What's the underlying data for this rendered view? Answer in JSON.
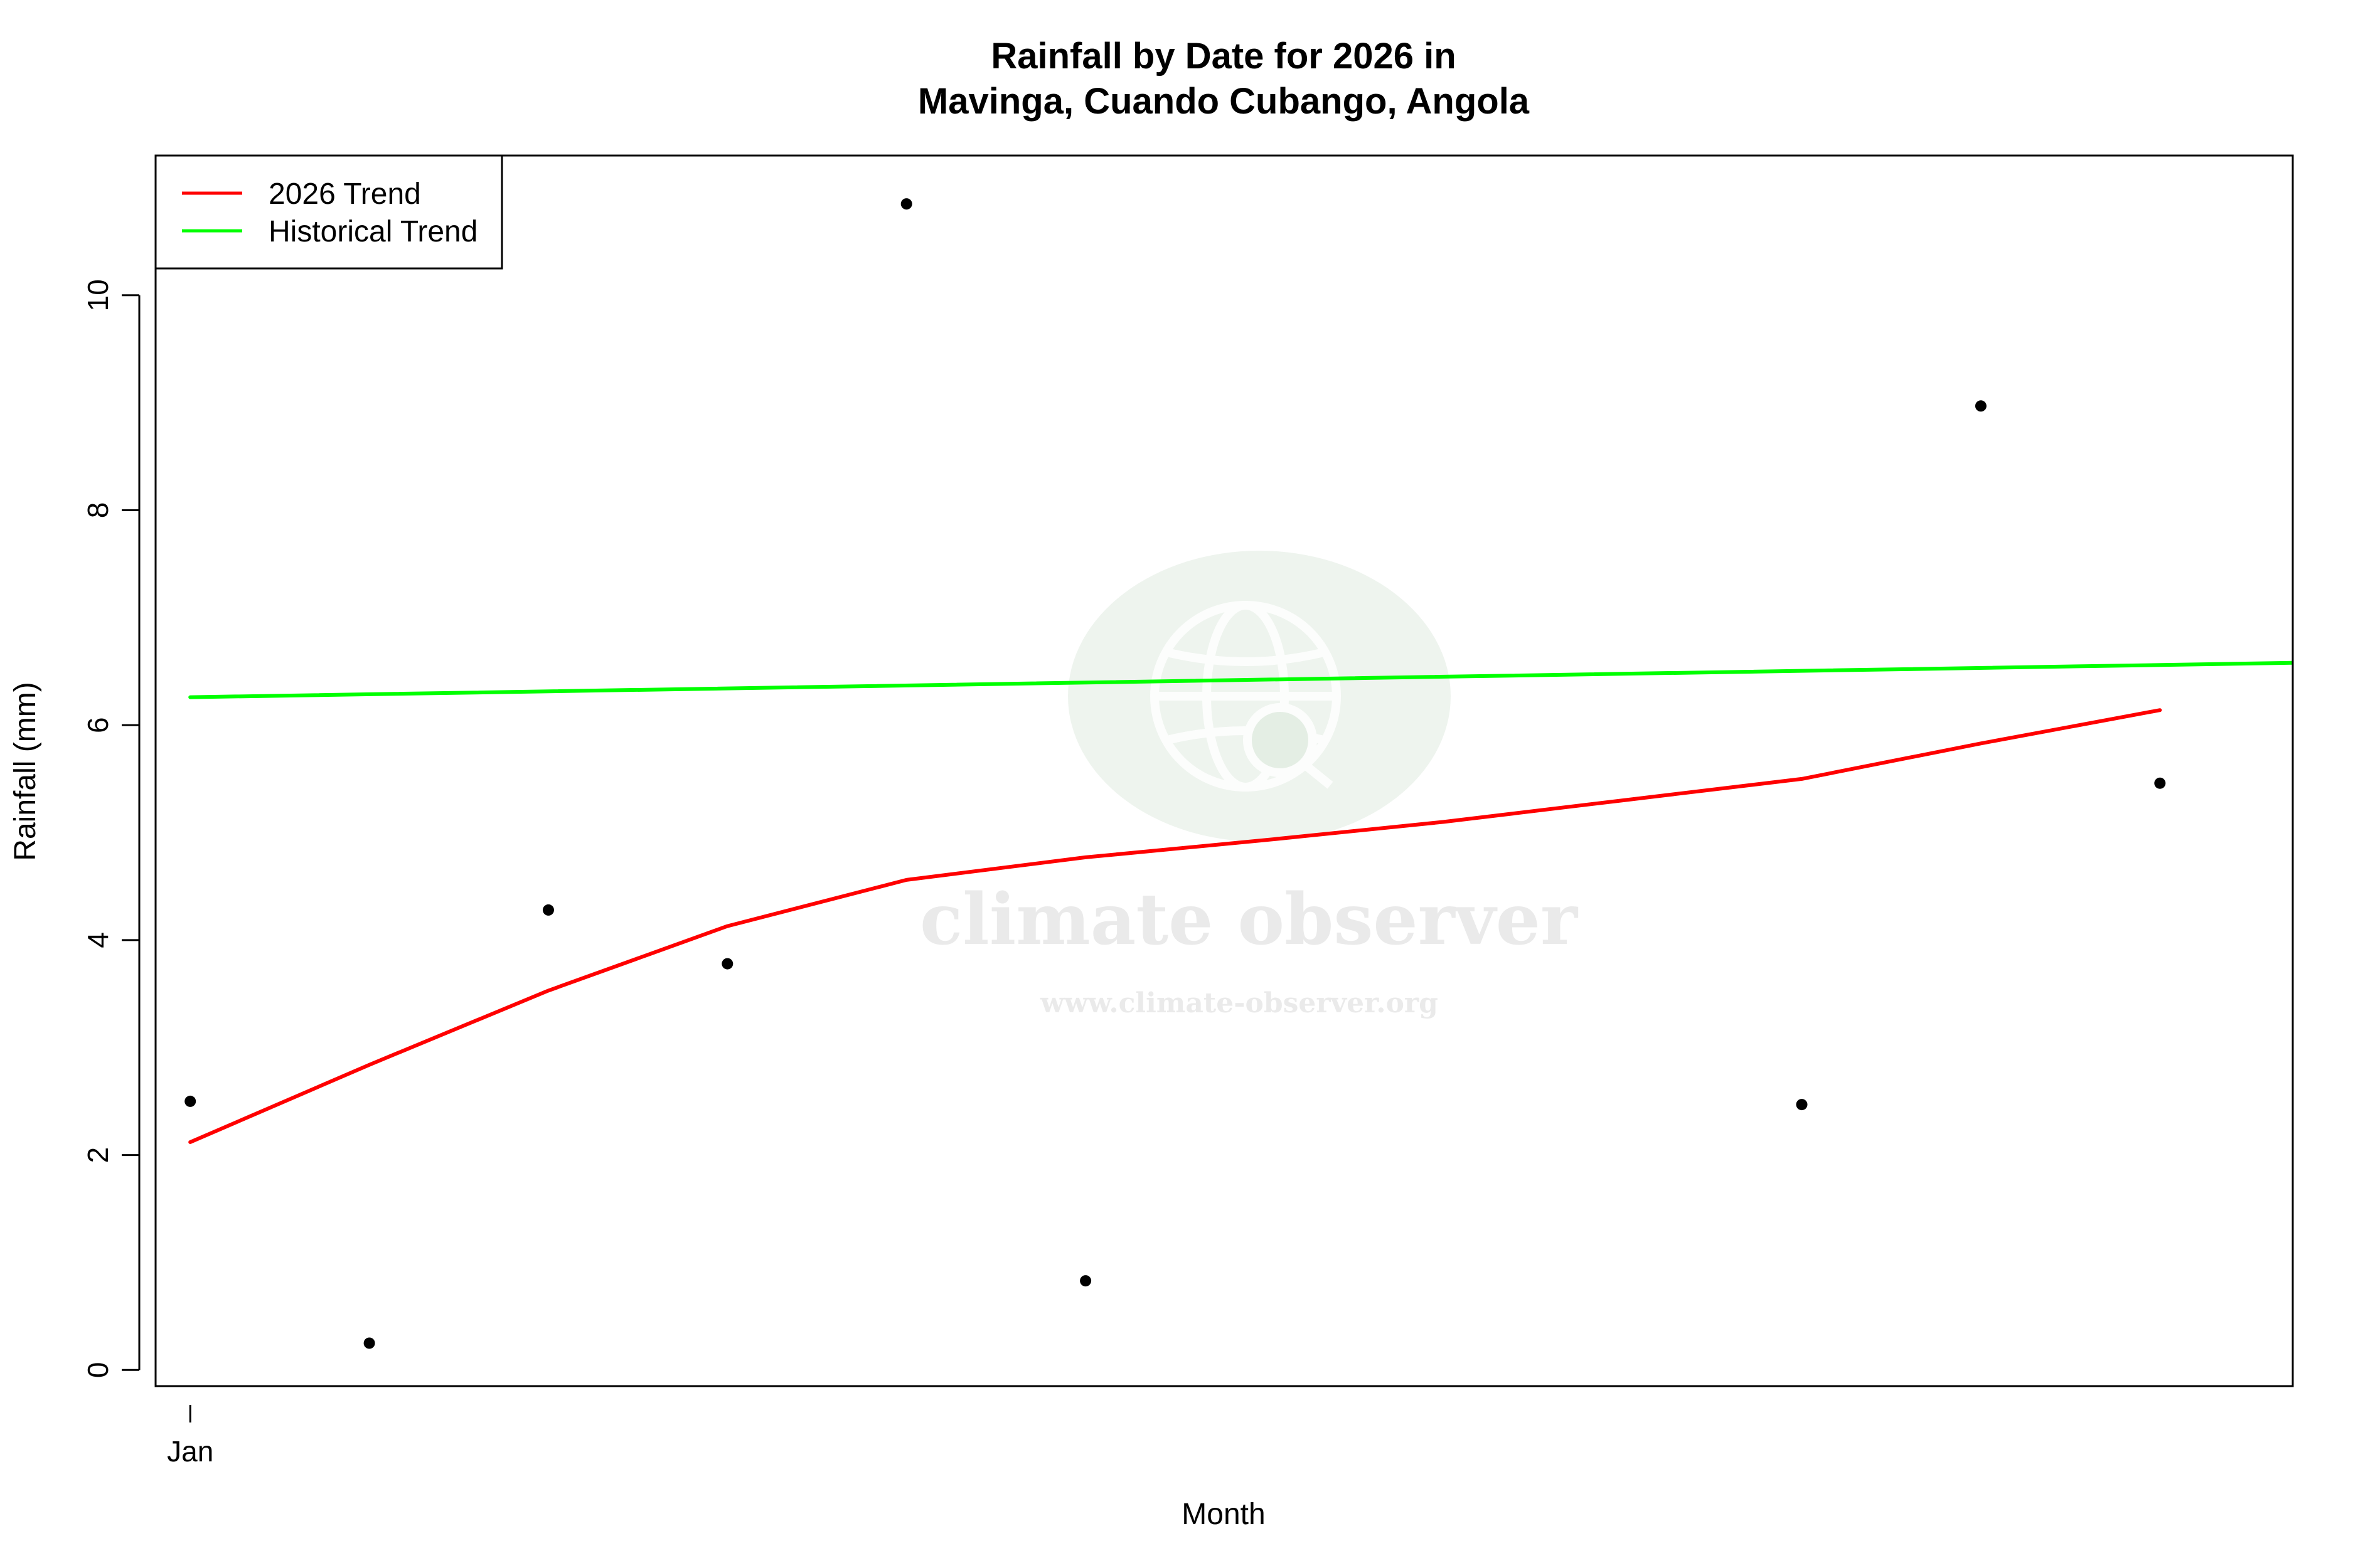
{
  "chart_data": {
    "type": "scatter",
    "title_lines": [
      "Rainfall by Date for 2026 in",
      "Mavinga, Cuando Cubango, Angola"
    ],
    "xlabel": "Month",
    "ylabel": "Rainfall (mm)",
    "x_unit": "day of year",
    "xlim": [
      -5,
      365
    ],
    "ylim": [
      -0.15,
      11.3
    ],
    "x_ticks": [
      {
        "value": 1,
        "label": "Jan"
      }
    ],
    "y_ticks": [
      {
        "value": 0,
        "label": "0"
      },
      {
        "value": 2,
        "label": "2"
      },
      {
        "value": 4,
        "label": "4"
      },
      {
        "value": 6,
        "label": "6"
      },
      {
        "value": 8,
        "label": "8"
      },
      {
        "value": 10,
        "label": "10"
      }
    ],
    "points": [
      {
        "x": 1,
        "y": 2.5
      },
      {
        "x": 32,
        "y": 0.25
      },
      {
        "x": 63,
        "y": 4.28
      },
      {
        "x": 94,
        "y": 3.78
      },
      {
        "x": 125,
        "y": 10.85
      },
      {
        "x": 156,
        "y": 0.83
      },
      {
        "x": 280,
        "y": 2.47
      },
      {
        "x": 311,
        "y": 8.97
      },
      {
        "x": 342,
        "y": 5.46
      }
    ],
    "series": [
      {
        "name": "2026 Trend",
        "color": "#ff0000",
        "x": [
          1,
          32,
          63,
          94,
          125,
          156,
          187,
          218,
          249,
          280,
          311,
          342
        ],
        "y": [
          2.12,
          2.84,
          3.53,
          4.13,
          4.56,
          4.77,
          4.93,
          5.1,
          5.3,
          5.5,
          5.83,
          6.14
        ]
      },
      {
        "name": "Historical Trend",
        "color": "#00ff00",
        "x": [
          1,
          365
        ],
        "y": [
          6.26,
          6.58
        ]
      }
    ],
    "legend_position": "top-left",
    "grid": false
  },
  "watermark": {
    "name": "climate observer",
    "url": "www.climate-observer.org"
  }
}
